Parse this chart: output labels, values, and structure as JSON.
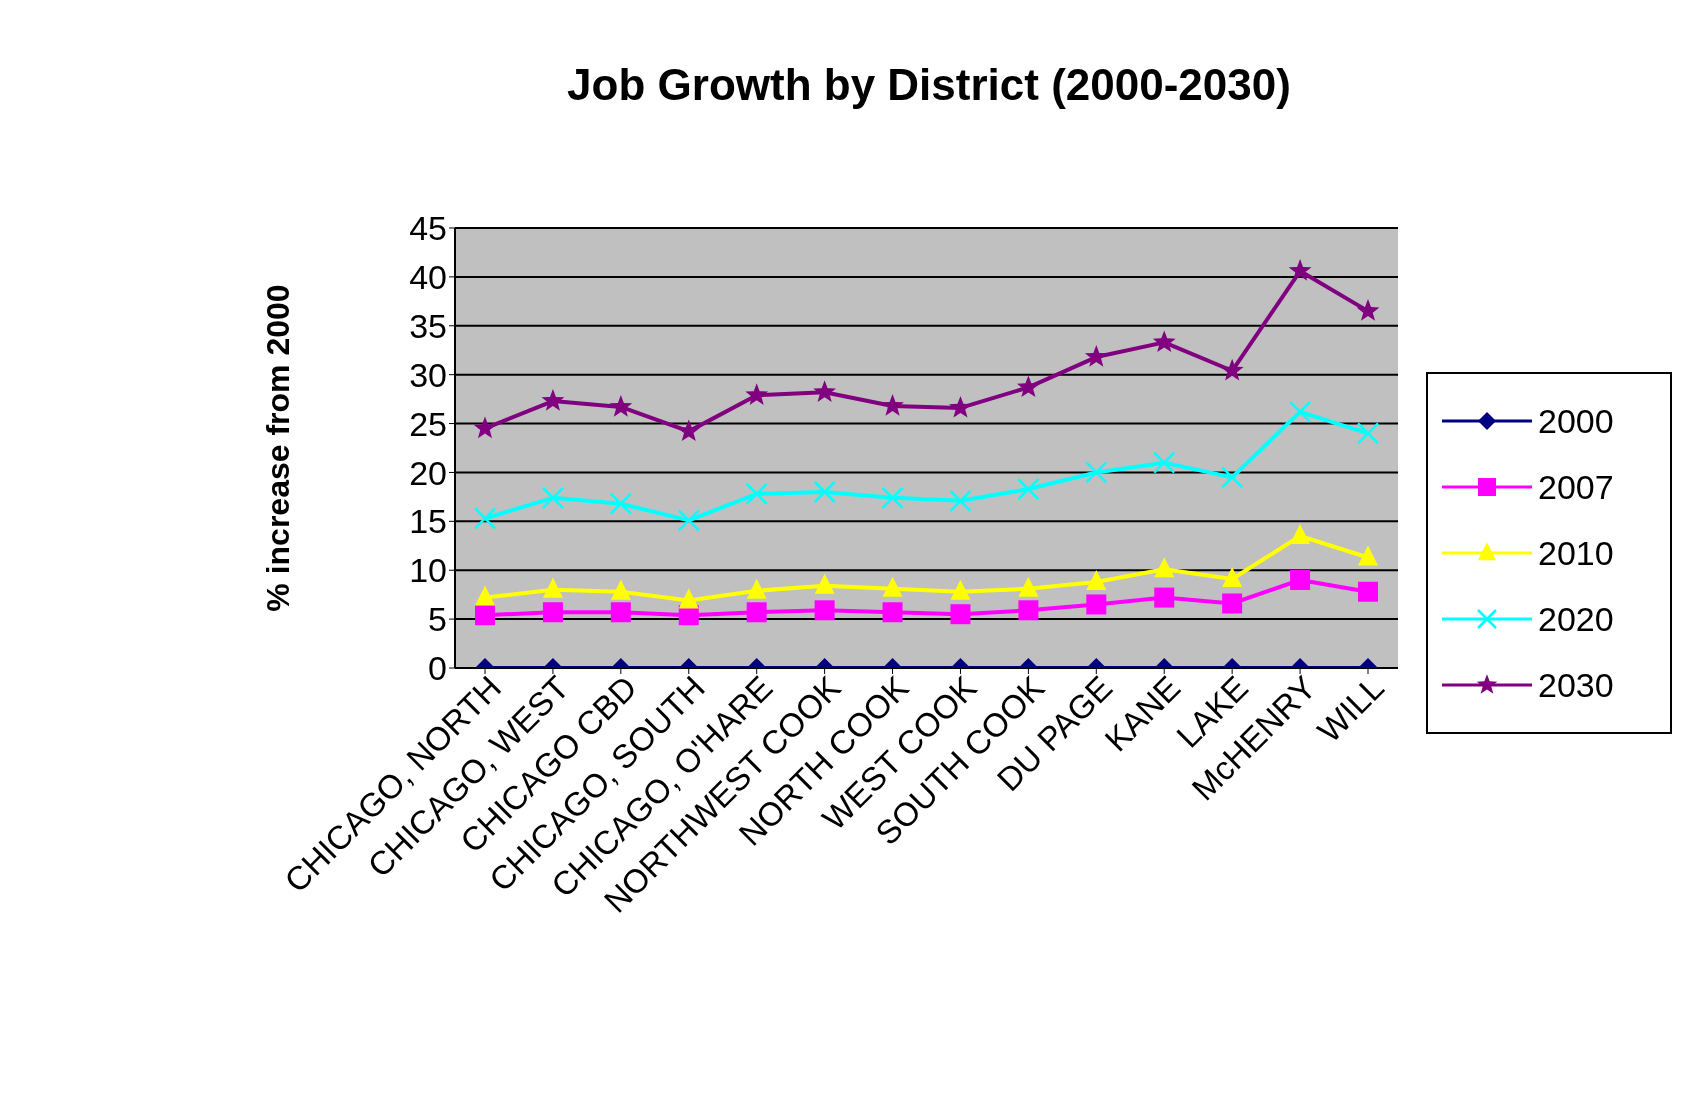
{
  "chart_data": {
    "type": "line",
    "title": "Job Growth by District  (2000-2030)",
    "ylabel": "% increase from 2000",
    "categories": [
      "CHICAGO, NORTH",
      "CHICAGO, WEST",
      "CHICAGO CBD",
      "CHICAGO, SOUTH",
      "CHICAGO, O'HARE",
      "NORTHWEST COOK",
      "NORTH COOK",
      "WEST COOK",
      "SOUTH COOK",
      "DU PAGE",
      "KANE",
      "LAKE",
      "McHENRY",
      "WILL"
    ],
    "series": [
      {
        "name": "2000",
        "color": "#000080",
        "marker": "diamond",
        "values": [
          0,
          0,
          0,
          0,
          0,
          0,
          0,
          0,
          0,
          0,
          0,
          0,
          0,
          0
        ]
      },
      {
        "name": "2007",
        "color": "#ff00ff",
        "marker": "square",
        "values": [
          5.4,
          5.7,
          5.7,
          5.4,
          5.7,
          5.9,
          5.7,
          5.5,
          5.9,
          6.5,
          7.2,
          6.6,
          9.0,
          7.8
        ]
      },
      {
        "name": "2010",
        "color": "#ffff00",
        "marker": "triangle",
        "values": [
          7.2,
          8.0,
          7.8,
          6.9,
          7.9,
          8.4,
          8.1,
          7.8,
          8.1,
          8.8,
          10.1,
          9.1,
          13.5,
          11.3
        ]
      },
      {
        "name": "2020",
        "color": "#00ffff",
        "marker": "cross",
        "values": [
          15.3,
          17.4,
          16.8,
          15.1,
          17.8,
          18.0,
          17.4,
          17.1,
          18.3,
          20.0,
          21.0,
          19.5,
          26.2,
          24.0
        ]
      },
      {
        "name": "2030",
        "color": "#800080",
        "marker": "star",
        "values": [
          24.5,
          27.3,
          26.7,
          24.2,
          27.9,
          28.2,
          26.8,
          26.6,
          28.7,
          31.8,
          33.3,
          30.4,
          40.6,
          36.5
        ]
      }
    ],
    "ylim": [
      0,
      45
    ],
    "yticks": [
      0,
      5,
      10,
      15,
      20,
      25,
      30,
      35,
      40,
      45
    ],
    "grid": "y",
    "legend": "right"
  }
}
